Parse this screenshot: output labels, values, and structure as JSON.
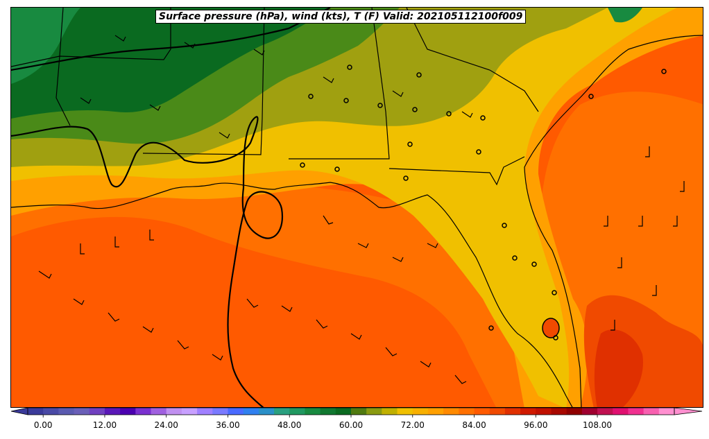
{
  "title": "Surface pressure (hPa), wind (kts), T (F) Valid: 202105112100f009",
  "colorbar": {
    "tick_labels": [
      "0.00",
      "12.00",
      "24.00",
      "36.00",
      "48.00",
      "60.00",
      "72.00",
      "84.00",
      "96.00",
      "108.00"
    ],
    "tick_values": [
      0,
      12,
      24,
      36,
      48,
      60,
      72,
      84,
      96,
      108
    ],
    "vmin": -3,
    "vmax": 123,
    "colors": [
      "#3a3a9a",
      "#4a4aa6",
      "#5a5ab0",
      "#6a5fb8",
      "#7040c0",
      "#5a18b8",
      "#4b00b0",
      "#7a30d0",
      "#a060e0",
      "#c090f0",
      "#c8a0ff",
      "#a080ff",
      "#7a7aff",
      "#4a6aff",
      "#3080f0",
      "#2a90c8",
      "#2aa080",
      "#209860",
      "#188a40",
      "#107830",
      "#0a6a20",
      "#507a10",
      "#8a9a10",
      "#c0b000",
      "#f0c000",
      "#f8b000",
      "#ffa000",
      "#ff8a00",
      "#ff7000",
      "#ff5a00",
      "#f04a00",
      "#e03000",
      "#d01a00",
      "#c01000",
      "#a80800",
      "#900000",
      "#a00030",
      "#c01050",
      "#e01070",
      "#f03090",
      "#f860b0",
      "#ff90d0"
    ]
  },
  "fill_colors": {
    "dark_green": "#0a6a20",
    "green": "#188a40",
    "mid_green": "#4a8a18",
    "olive": "#a0a010",
    "yellow": "#f0c000",
    "orange": "#ffa000",
    "dark_orange": "#ff7000",
    "red_orange": "#ff5a00",
    "red": "#f04a00"
  }
}
